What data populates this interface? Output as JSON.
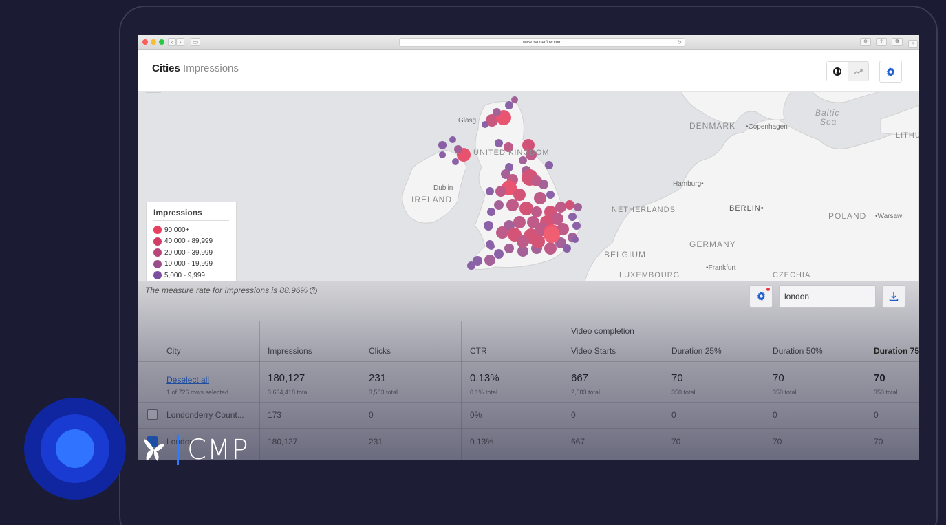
{
  "browser": {
    "url": "www.bannerflow.com"
  },
  "header": {
    "title_bold": "Cities",
    "title_rest": "Impressions"
  },
  "map": {
    "labels": [
      "Glasg",
      "UNITED KINGDOM",
      "Dublin",
      "IRELAND",
      "DENMARK",
      "Copenhagen",
      "Baltic Sea",
      "LITHU",
      "Hamburg",
      "NETHERLANDS",
      "BERLIN",
      "POLAND",
      "Warsaw",
      "GERMANY",
      "BELGIUM",
      "Frankfurt",
      "LUXEMBOURG",
      "CZECHIA"
    ],
    "legend": {
      "title": "Impressions",
      "items": [
        {
          "label": "90,000+",
          "color": "#e8405f"
        },
        {
          "label": "40,000 - 89,999",
          "color": "#d03e68"
        },
        {
          "label": "20,000 - 39,999",
          "color": "#b8467a"
        },
        {
          "label": "10,000 - 19,999",
          "color": "#9a4f8c"
        },
        {
          "label": "5,000 - 9,999",
          "color": "#7d4f9e"
        }
      ]
    }
  },
  "toolbar": {
    "measure_rate": "The measure rate for Impressions is 88.96%",
    "search_value": "london"
  },
  "table": {
    "group_header": "Video completion",
    "columns": [
      "City",
      "Impressions",
      "Clicks",
      "CTR",
      "Video Starts",
      "Duration 25%",
      "Duration 50%",
      "Duration 75"
    ],
    "summary": {
      "deselect": "Deselect all",
      "selection_note": "1 of 726 rows selected",
      "values": [
        "180,127",
        "231",
        "0.13%",
        "667",
        "70",
        "70",
        "70"
      ],
      "totals": [
        "3,634,418 total",
        "3,583 total",
        "0.1% total",
        "2,583 total",
        "350 total",
        "350 total",
        "350 total"
      ]
    },
    "rows": [
      {
        "city": "Londonderry Count...",
        "values": [
          "173",
          "0",
          "0%",
          "0",
          "0",
          "0",
          "0"
        ],
        "checked": false
      },
      {
        "city": "London",
        "values": [
          "180,127",
          "231",
          "0.13%",
          "667",
          "70",
          "70",
          "70"
        ],
        "checked": true
      }
    ]
  },
  "brand": {
    "name": "CMP"
  },
  "colors": {
    "background": "#1b1c33",
    "accent": "#2f73ff",
    "gear": "#1f5fcf"
  }
}
